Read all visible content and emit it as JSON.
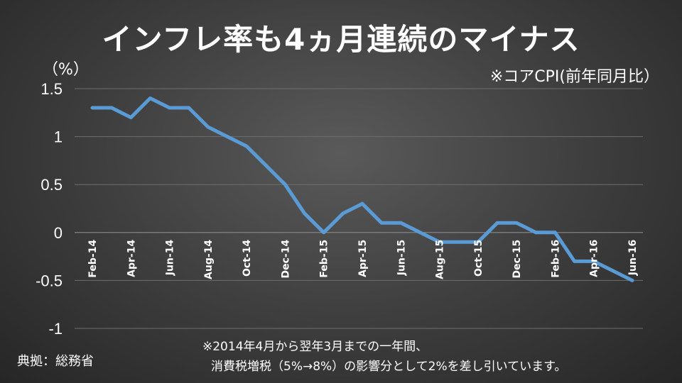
{
  "title": "インフレ率も4ヵ月連続のマイナス",
  "y_unit": "（%）",
  "corner_note": "※コアCPI(前年同月比）",
  "source": "典拠：総務省",
  "footnote": {
    "line1": "※2014年4月から翌年3月までの一年間、",
    "line2": "消費税増税（5%→8%）の影響分として2%を差し引いています。"
  },
  "colors": {
    "series": "#5b9bd5"
  },
  "chart_data": {
    "type": "line",
    "title": "インフレ率も4ヵ月連続のマイナス",
    "ylabel": "（%）",
    "xlabel": "",
    "ylim": [
      -1,
      1.5
    ],
    "yticks": [
      "1.5",
      "1",
      "0.5",
      "0",
      "-0.5",
      "-1"
    ],
    "ytick_values": [
      1.5,
      1,
      0.5,
      0,
      -0.5,
      -1
    ],
    "grid": true,
    "legend": "none",
    "x": [
      "Feb-14",
      "Mar-14",
      "Apr-14",
      "May-14",
      "Jun-14",
      "Jul-14",
      "Aug-14",
      "Sep-14",
      "Oct-14",
      "Nov-14",
      "Dec-14",
      "Jan-15",
      "Feb-15",
      "Mar-15",
      "Apr-15",
      "May-15",
      "Jun-15",
      "Jul-15",
      "Aug-15",
      "Sep-15",
      "Oct-15",
      "Nov-15",
      "Dec-15",
      "Jan-16",
      "Feb-16",
      "Mar-16",
      "Apr-16",
      "May-16",
      "Jun-16"
    ],
    "xtick_labels": [
      "Feb-14",
      "Apr-14",
      "Jun-14",
      "Aug-14",
      "Oct-14",
      "Dec-14",
      "Feb-15",
      "Apr-15",
      "Jun-15",
      "Aug-15",
      "Oct-15",
      "Dec-15",
      "Feb-16",
      "Apr-16",
      "Jun-16"
    ],
    "series": [
      {
        "values": [
          1.3,
          1.3,
          1.2,
          1.4,
          1.3,
          1.3,
          1.1,
          1.0,
          0.9,
          0.7,
          0.5,
          0.2,
          0.0,
          0.2,
          0.3,
          0.1,
          0.1,
          0.0,
          -0.1,
          -0.1,
          -0.1,
          0.1,
          0.1,
          0.0,
          0.0,
          -0.3,
          -0.3,
          -0.4,
          -0.5
        ]
      }
    ]
  }
}
